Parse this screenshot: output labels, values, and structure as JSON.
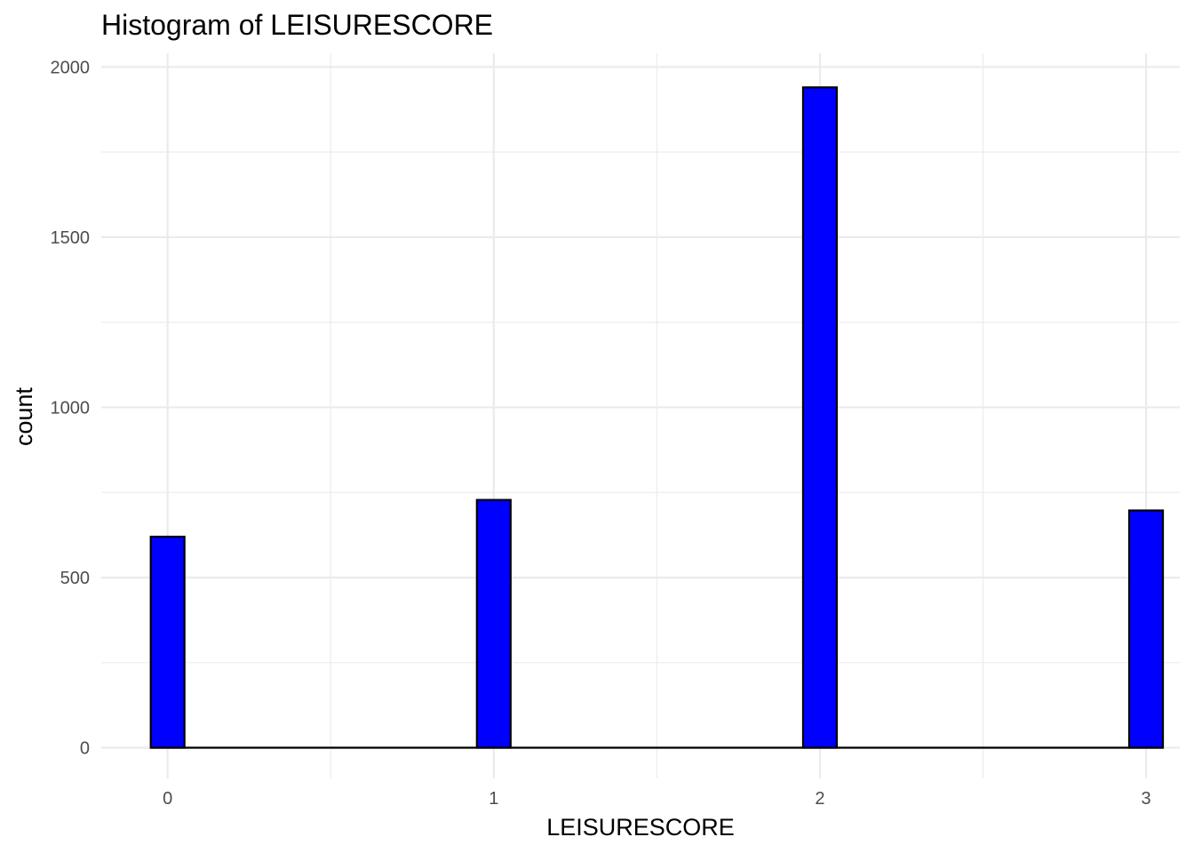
{
  "chart_data": {
    "type": "bar",
    "title": "Histogram of LEISURESCORE",
    "xlabel": "LEISURESCORE",
    "ylabel": "count",
    "bin_width": 0.1034,
    "xlim": [
      -0.2034,
      3.1034
    ],
    "ylim": [
      -90,
      2040
    ],
    "x_ticks": [
      0,
      1,
      2,
      3
    ],
    "x_tick_labels": [
      "0",
      "1",
      "2",
      "3"
    ],
    "y_ticks": [
      0,
      500,
      1000,
      1500,
      2000
    ],
    "y_tick_labels": [
      "0",
      "500",
      "1000",
      "1500",
      "2000"
    ],
    "x_minor": [
      0.5,
      1.5,
      2.5
    ],
    "y_minor": [
      250,
      750,
      1250,
      1750
    ],
    "categories": [
      "0",
      "1",
      "2",
      "3"
    ],
    "values": [
      620,
      728,
      1940,
      697
    ],
    "bins": [
      {
        "x": 0,
        "count": 620
      },
      {
        "x": 1,
        "count": 728
      },
      {
        "x": 2,
        "count": 1940
      },
      {
        "x": 3,
        "count": 697
      }
    ],
    "bar_fill": "#0000ff",
    "bar_outline": "#000000",
    "grid": true,
    "legend": "none"
  }
}
